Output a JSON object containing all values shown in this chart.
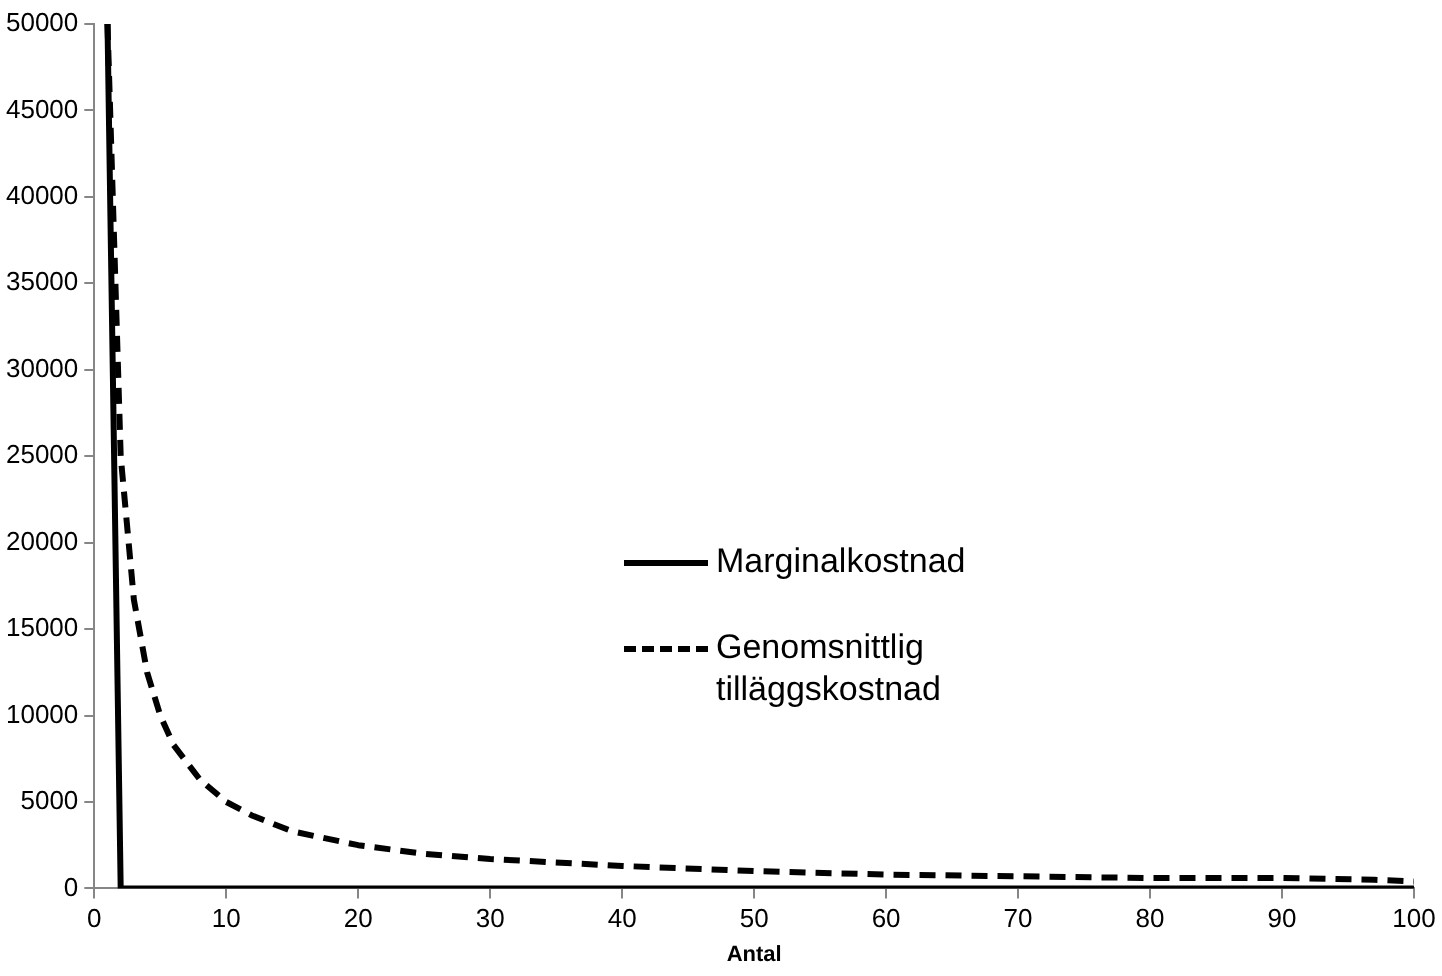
{
  "chart_data": {
    "type": "line",
    "xlabel": "Antal",
    "xlim": [
      0,
      100
    ],
    "xticks": [
      0,
      10,
      20,
      30,
      40,
      50,
      60,
      70,
      80,
      90,
      100
    ],
    "ylim": [
      0,
      50000
    ],
    "yticks": [
      0,
      5000,
      10000,
      15000,
      20000,
      25000,
      30000,
      35000,
      40000,
      45000,
      50000
    ],
    "grid": false,
    "legend": "right",
    "marker": "none",
    "series": [
      {
        "name": "Marginalkostnad",
        "color": "#000000",
        "line_style": "solid",
        "x": [
          1,
          2,
          100
        ],
        "values": [
          50000,
          0,
          0
        ]
      },
      {
        "name": "Genomsnittlig tilläggskostnad",
        "color": "#000000",
        "line_style": "dashed",
        "x": [
          1,
          2,
          3,
          4,
          5,
          6,
          8,
          10,
          12,
          15,
          20,
          25,
          30,
          40,
          50,
          60,
          70,
          80,
          90,
          97,
          100
        ],
        "values": [
          50000,
          25000,
          16700,
          12500,
          10000,
          8300,
          6300,
          5000,
          4200,
          3300,
          2500,
          2000,
          1700,
          1300,
          1000,
          800,
          700,
          600,
          600,
          500,
          400
        ]
      }
    ]
  }
}
